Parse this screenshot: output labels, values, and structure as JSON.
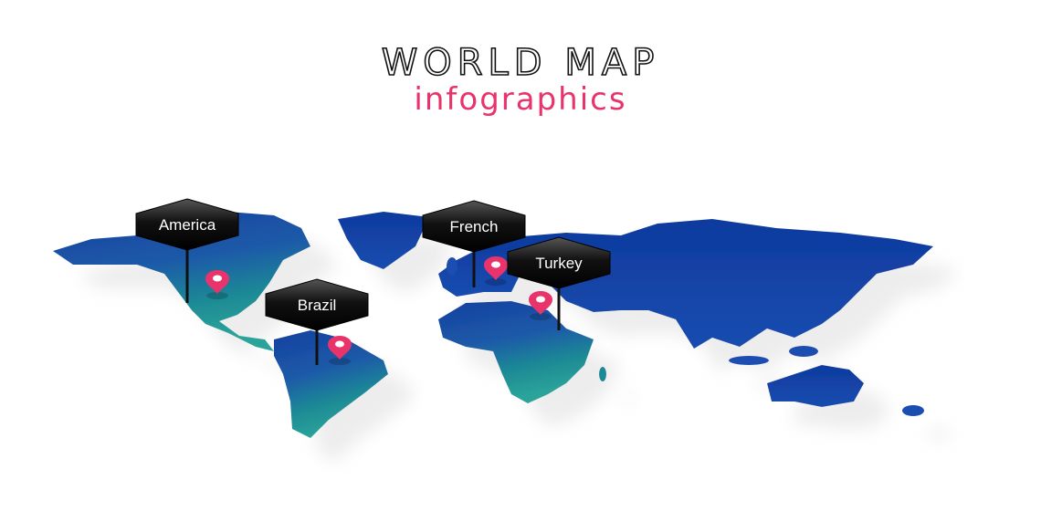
{
  "header": {
    "title": "WORLD MAP",
    "subtitle": "infographics"
  },
  "markers": [
    {
      "label": "America"
    },
    {
      "label": "Brazil"
    },
    {
      "label": "French"
    },
    {
      "label": "Turkey"
    }
  ]
}
